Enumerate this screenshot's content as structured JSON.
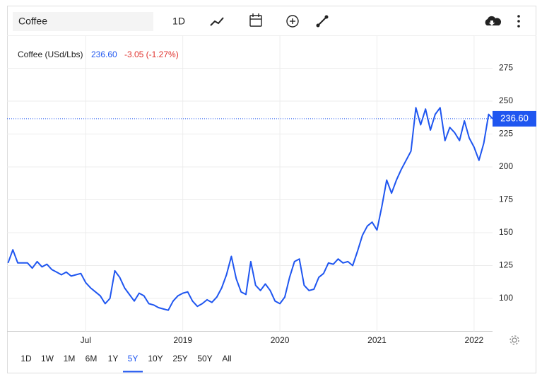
{
  "search": "Coffee",
  "toolbar": {
    "interval": "1D"
  },
  "ranges": [
    "1D",
    "1W",
    "1M",
    "6M",
    "1Y",
    "5Y",
    "10Y",
    "25Y",
    "50Y",
    "All"
  ],
  "active_range_index": 5,
  "chart_data": {
    "type": "line",
    "series": [
      {
        "name": "Coffee (USd/Lbs)",
        "color": "#1f56f0",
        "values": [
          127,
          137,
          127,
          127,
          127,
          123,
          128,
          124,
          126,
          122,
          120,
          118,
          120,
          117,
          118,
          119,
          112,
          108,
          105,
          102,
          96,
          100,
          121,
          116,
          108,
          103,
          98,
          104,
          102,
          96,
          95,
          93,
          92,
          91,
          98,
          102,
          104,
          105,
          98,
          94,
          96,
          99,
          97,
          101,
          108,
          118,
          132,
          115,
          105,
          103,
          128,
          110,
          106,
          111,
          106,
          98,
          96,
          101,
          116,
          128,
          130,
          110,
          106,
          107,
          116,
          119,
          127,
          126,
          130,
          127,
          128,
          125,
          136,
          148,
          155,
          158,
          152,
          170,
          190,
          180,
          190,
          198,
          205,
          212,
          245,
          232,
          244,
          228,
          240,
          245,
          220,
          230,
          226,
          220,
          235,
          222,
          215,
          205,
          218,
          240,
          236.6
        ]
      }
    ],
    "x": [
      2017.2,
      2017.25,
      2017.3,
      2017.35,
      2017.4,
      2017.45,
      2017.5,
      2017.55,
      2017.6,
      2017.65,
      2017.7,
      2017.75,
      2017.8,
      2017.85,
      2017.9,
      2017.95,
      2018,
      2018.05,
      2018.1,
      2018.15,
      2018.2,
      2018.25,
      2018.3,
      2018.35,
      2018.4,
      2018.45,
      2018.5,
      2018.55,
      2018.6,
      2018.65,
      2018.7,
      2018.75,
      2018.8,
      2018.85,
      2018.9,
      2018.95,
      2019,
      2019.05,
      2019.1,
      2019.15,
      2019.2,
      2019.25,
      2019.3,
      2019.35,
      2019.4,
      2019.45,
      2019.5,
      2019.55,
      2019.6,
      2019.65,
      2019.7,
      2019.75,
      2019.8,
      2019.85,
      2019.9,
      2019.95,
      2020,
      2020.05,
      2020.1,
      2020.15,
      2020.2,
      2020.25,
      2020.3,
      2020.35,
      2020.4,
      2020.45,
      2020.5,
      2020.55,
      2020.6,
      2020.65,
      2020.7,
      2020.75,
      2020.8,
      2020.85,
      2020.9,
      2020.95,
      2021,
      2021.05,
      2021.1,
      2021.15,
      2021.2,
      2021.25,
      2021.3,
      2021.35,
      2021.4,
      2021.45,
      2021.5,
      2021.55,
      2021.6,
      2021.65,
      2021.7,
      2021.75,
      2021.8,
      2021.85,
      2021.9,
      2021.95,
      2022,
      2022.05,
      2022.1,
      2022.15,
      2022.19
    ],
    "xlim": [
      2017.19,
      2022.19
    ],
    "xticks": [
      {
        "value": 2018,
        "label": "Jul"
      },
      2019,
      2020,
      2021,
      2022
    ],
    "ylim": [
      75,
      300
    ],
    "yticks": [
      100,
      125,
      150,
      175,
      200,
      225,
      250,
      275
    ],
    "grid": true,
    "price": {
      "value": 236.6,
      "label": "236.60"
    },
    "change": "-3.05 (-1.27%)"
  }
}
